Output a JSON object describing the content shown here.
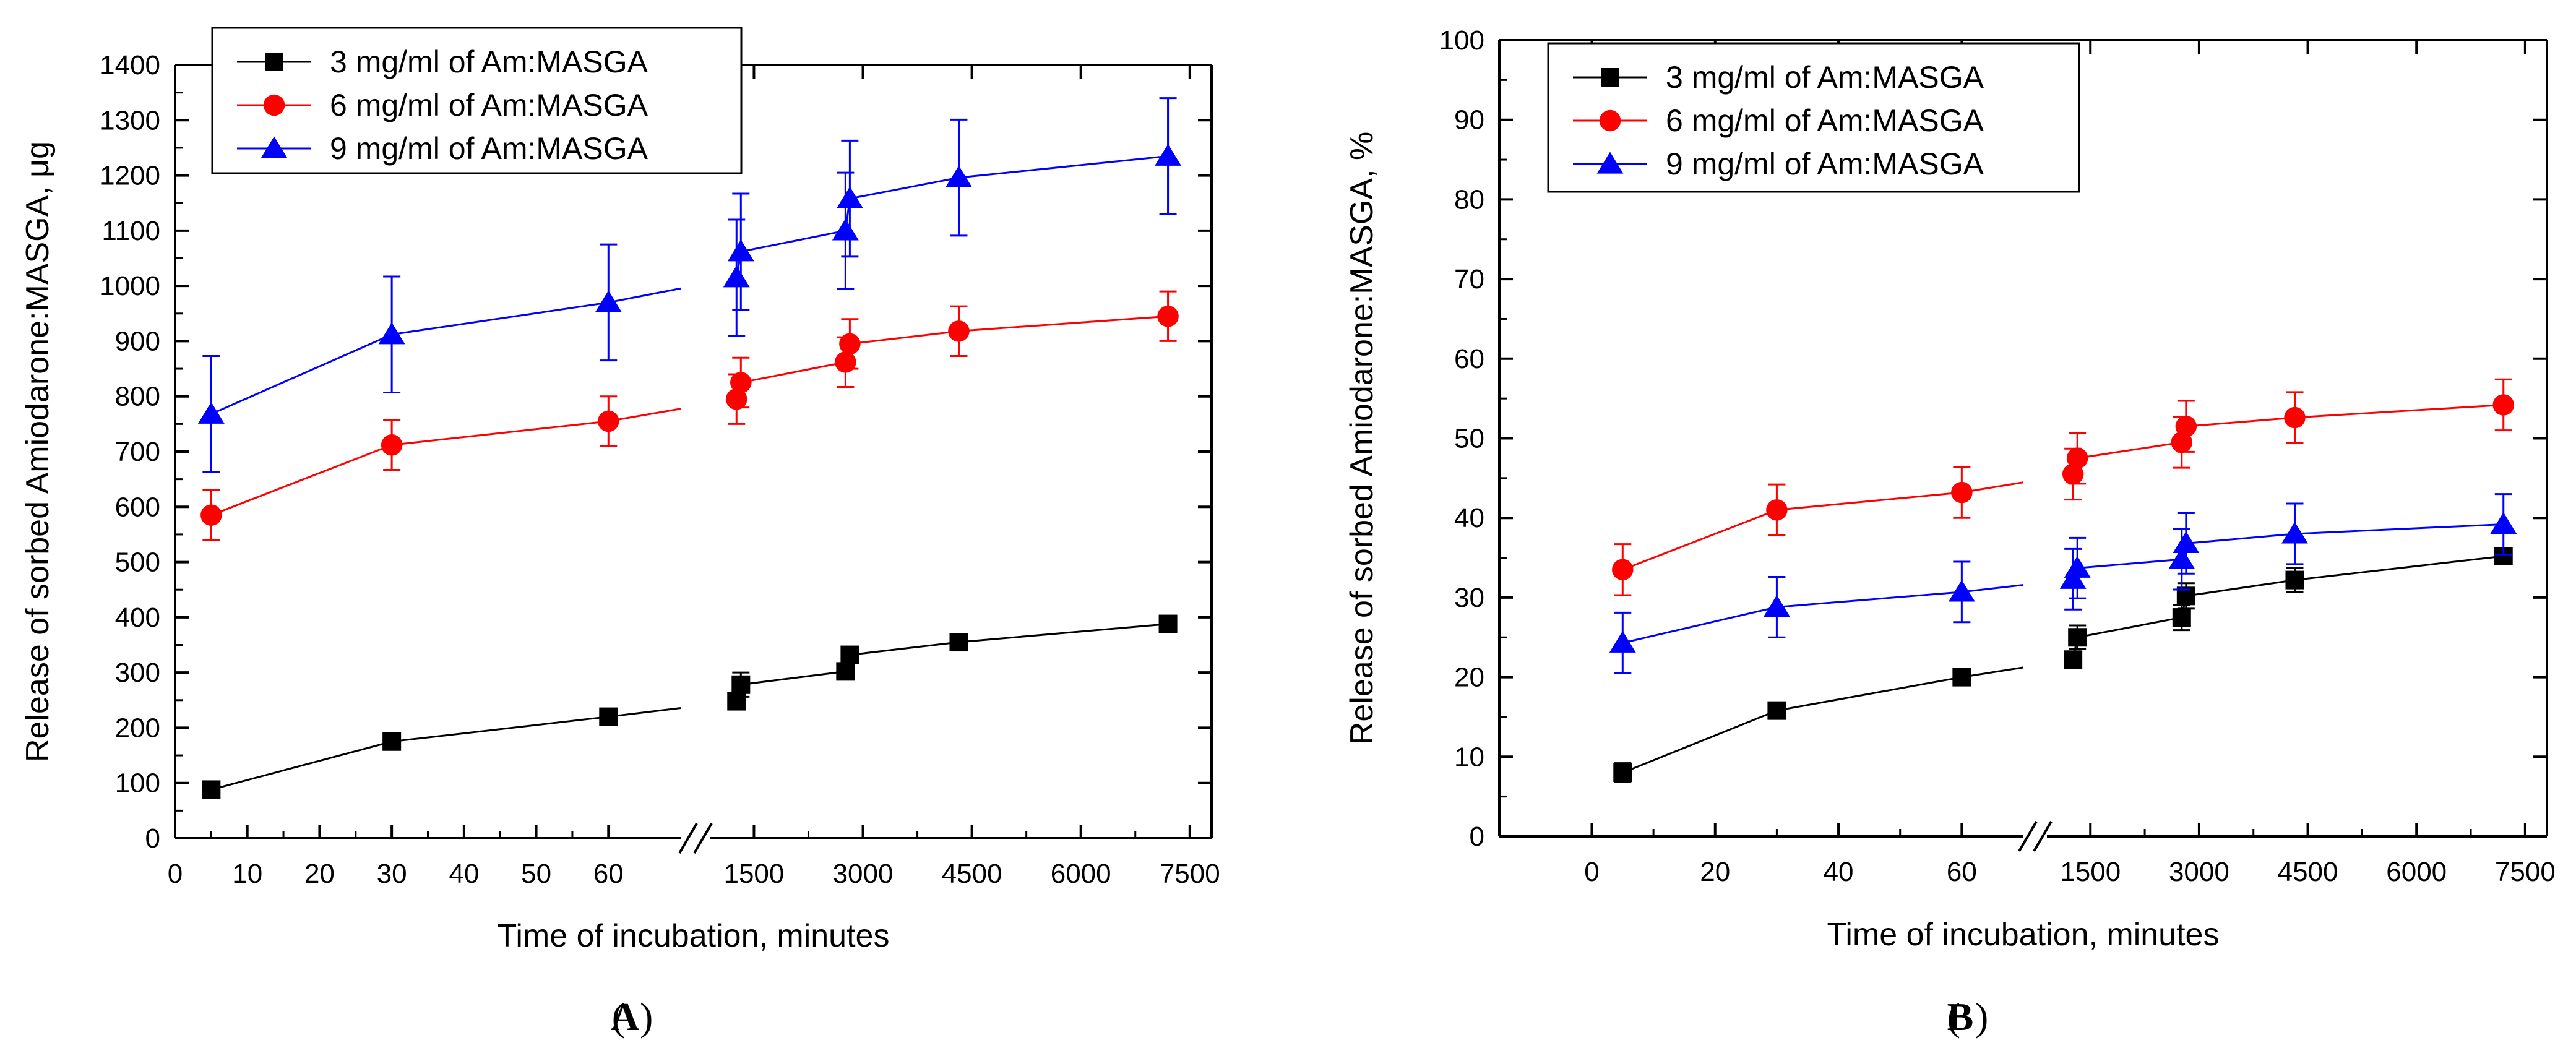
{
  "colors": {
    "series1": "#000000",
    "series2": "#ff0000",
    "series3": "#0000ff",
    "axis": "#000000",
    "background": "#ffffff"
  },
  "chart_data": [
    {
      "type": "line",
      "panel_label": "A",
      "xlabel": "Time of incubation, minutes",
      "ylabel": "Release of sorbed Amiodarone:MASGA, μg",
      "ylim": [
        0,
        1400
      ],
      "y_ticks": [
        "0",
        "100",
        "200",
        "300",
        "400",
        "500",
        "600",
        "700",
        "800",
        "900",
        "1000",
        "1100",
        "1200",
        "1300",
        "1400"
      ],
      "x_segments": [
        {
          "range": [
            0,
            70
          ],
          "ticks": [
            "0",
            "10",
            "20",
            "30",
            "40",
            "50",
            "60"
          ],
          "tick_values": [
            0,
            10,
            20,
            30,
            40,
            50,
            60
          ]
        },
        {
          "range": [
            900,
            7800
          ],
          "ticks": [
            "1500",
            "3000",
            "4500",
            "6000",
            "7500"
          ],
          "tick_values": [
            1500,
            3000,
            4500,
            6000,
            7500
          ]
        }
      ],
      "axis_break": "//",
      "legend_position": "top-left",
      "series": [
        {
          "name": "3 mg/ml of Am:MASGA",
          "color_key": "series1",
          "marker": "square",
          "points": [
            {
              "x": 5,
              "y": 88,
              "err": 8
            },
            {
              "x": 30,
              "y": 175,
              "err": 8
            },
            {
              "x": 60,
              "y": 220,
              "err": 8
            },
            {
              "x": 1260,
              "y": 248,
              "err": 10,
              "bridge": true
            },
            {
              "x": 1320,
              "y": 278,
              "err": 22
            },
            {
              "x": 2760,
              "y": 302,
              "err": 12
            },
            {
              "x": 2820,
              "y": 332,
              "err": 12
            },
            {
              "x": 4320,
              "y": 355,
              "err": 10
            },
            {
              "x": 7200,
              "y": 388,
              "err": 10
            }
          ]
        },
        {
          "name": "6 mg/ml of Am:MASGA",
          "color_key": "series2",
          "marker": "circle",
          "points": [
            {
              "x": 5,
              "y": 585,
              "err": 45
            },
            {
              "x": 30,
              "y": 712,
              "err": 45
            },
            {
              "x": 60,
              "y": 755,
              "err": 45
            },
            {
              "x": 1260,
              "y": 795,
              "err": 45,
              "bridge": true
            },
            {
              "x": 1320,
              "y": 825,
              "err": 45
            },
            {
              "x": 2760,
              "y": 862,
              "err": 45
            },
            {
              "x": 2820,
              "y": 895,
              "err": 45
            },
            {
              "x": 4320,
              "y": 918,
              "err": 45
            },
            {
              "x": 7200,
              "y": 945,
              "err": 45
            }
          ]
        },
        {
          "name": "9 mg/ml of Am:MASGA",
          "color_key": "series3",
          "marker": "triangle",
          "points": [
            {
              "x": 5,
              "y": 768,
              "err": 105
            },
            {
              "x": 30,
              "y": 912,
              "err": 105
            },
            {
              "x": 60,
              "y": 970,
              "err": 105
            },
            {
              "x": 1260,
              "y": 1015,
              "err": 105,
              "bridge": true
            },
            {
              "x": 1320,
              "y": 1062,
              "err": 105
            },
            {
              "x": 2760,
              "y": 1100,
              "err": 105
            },
            {
              "x": 2820,
              "y": 1158,
              "err": 105
            },
            {
              "x": 4320,
              "y": 1196,
              "err": 105
            },
            {
              "x": 7200,
              "y": 1235,
              "err": 105
            }
          ]
        }
      ]
    },
    {
      "type": "line",
      "panel_label": "B",
      "xlabel": "Time of incubation, minutes",
      "ylabel": "Release of sorbed Amiodarone:MASGA, %",
      "ylim": [
        0,
        100
      ],
      "y_ticks": [
        "0",
        "10",
        "20",
        "30",
        "40",
        "50",
        "60",
        "70",
        "80",
        "90",
        "100"
      ],
      "x_segments": [
        {
          "range": [
            -15,
            70
          ],
          "ticks": [
            "0",
            "20",
            "40",
            "60"
          ],
          "tick_values": [
            0,
            20,
            40,
            60
          ]
        },
        {
          "range": [
            900,
            7800
          ],
          "ticks": [
            "1500",
            "3000",
            "4500",
            "6000",
            "7500"
          ],
          "tick_values": [
            1500,
            3000,
            4500,
            6000,
            7500
          ]
        }
      ],
      "axis_break": "//",
      "legend_position": "top-left",
      "series": [
        {
          "name": "3 mg/ml of Am:MASGA",
          "color_key": "series1",
          "marker": "square",
          "points": [
            {
              "x": 5,
              "y": 8,
              "err": 1.2
            },
            {
              "x": 30,
              "y": 15.8,
              "err": 0.6
            },
            {
              "x": 60,
              "y": 20,
              "err": 0.6
            },
            {
              "x": 1260,
              "y": 22.2,
              "err": 0.8,
              "bridge": true
            },
            {
              "x": 1320,
              "y": 25,
              "err": 1.5
            },
            {
              "x": 2760,
              "y": 27.5,
              "err": 1.6
            },
            {
              "x": 2820,
              "y": 30.2,
              "err": 1.6
            },
            {
              "x": 4320,
              "y": 32.2,
              "err": 1.5
            },
            {
              "x": 7200,
              "y": 35.2,
              "err": 0.8
            }
          ]
        },
        {
          "name": "6 mg/ml of Am:MASGA",
          "color_key": "series2",
          "marker": "circle",
          "points": [
            {
              "x": 5,
              "y": 33.5,
              "err": 3.2
            },
            {
              "x": 30,
              "y": 41,
              "err": 3.2
            },
            {
              "x": 60,
              "y": 43.2,
              "err": 3.2
            },
            {
              "x": 1260,
              "y": 45.5,
              "err": 3.2,
              "bridge": true
            },
            {
              "x": 1320,
              "y": 47.5,
              "err": 3.2
            },
            {
              "x": 2760,
              "y": 49.5,
              "err": 3.2
            },
            {
              "x": 2820,
              "y": 51.5,
              "err": 3.2
            },
            {
              "x": 4320,
              "y": 52.6,
              "err": 3.2
            },
            {
              "x": 7200,
              "y": 54.2,
              "err": 3.2
            }
          ]
        },
        {
          "name": "9 mg/ml of Am:MASGA",
          "color_key": "series3",
          "marker": "triangle",
          "points": [
            {
              "x": 5,
              "y": 24.3,
              "err": 3.8
            },
            {
              "x": 30,
              "y": 28.8,
              "err": 3.8
            },
            {
              "x": 60,
              "y": 30.7,
              "err": 3.8
            },
            {
              "x": 1260,
              "y": 32.3,
              "err": 3.8,
              "bridge": true
            },
            {
              "x": 1320,
              "y": 33.7,
              "err": 3.8
            },
            {
              "x": 2760,
              "y": 34.8,
              "err": 3.8
            },
            {
              "x": 2820,
              "y": 36.8,
              "err": 3.8
            },
            {
              "x": 4320,
              "y": 38,
              "err": 3.8
            },
            {
              "x": 7200,
              "y": 39.2,
              "err": 3.8
            }
          ]
        }
      ]
    }
  ]
}
